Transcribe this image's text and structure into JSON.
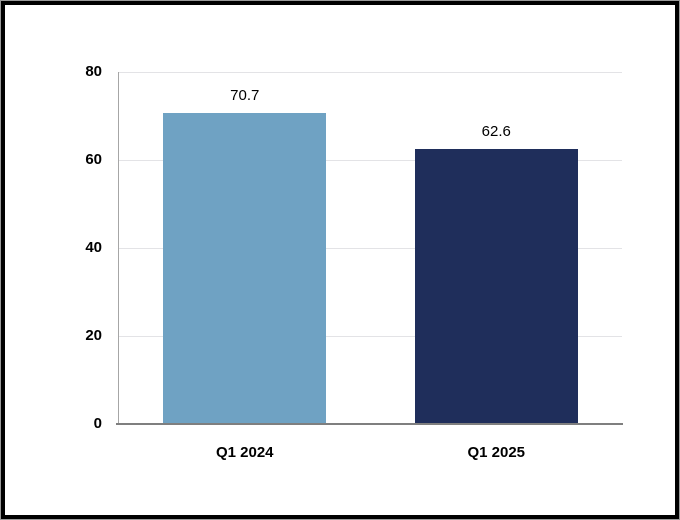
{
  "chart_data": {
    "type": "bar",
    "title": "",
    "xlabel": "",
    "ylabel": "",
    "categories": [
      "Q1 2024",
      "Q1 2025"
    ],
    "values": [
      70.7,
      62.6
    ],
    "value_labels": [
      "70.7",
      "62.6"
    ],
    "bar_colors": [
      "#6FA2C3",
      "#1F2E5B"
    ],
    "yticks": [
      0,
      20,
      40,
      60,
      80
    ],
    "ytick_labels": [
      "0",
      "20",
      "40",
      "60",
      "80"
    ],
    "ylim": [
      0,
      80
    ],
    "grid": "horizontal",
    "legend": "none",
    "colors": {
      "gridline": "#E3E3E6",
      "axis_baseline": "#7F7F7F",
      "left_axis_line": "#A6A6A6",
      "text": "#000000",
      "background": "#FFFFFF",
      "frame_border": "#000000"
    }
  }
}
